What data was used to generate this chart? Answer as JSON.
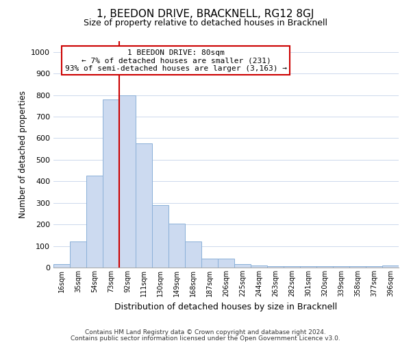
{
  "title": "1, BEEDON DRIVE, BRACKNELL, RG12 8GJ",
  "subtitle": "Size of property relative to detached houses in Bracknell",
  "xlabel": "Distribution of detached houses by size in Bracknell",
  "ylabel": "Number of detached properties",
  "bar_labels": [
    "16sqm",
    "35sqm",
    "54sqm",
    "73sqm",
    "92sqm",
    "111sqm",
    "130sqm",
    "149sqm",
    "168sqm",
    "187sqm",
    "206sqm",
    "225sqm",
    "244sqm",
    "263sqm",
    "282sqm",
    "301sqm",
    "320sqm",
    "339sqm",
    "358sqm",
    "377sqm",
    "396sqm"
  ],
  "bar_values": [
    15,
    120,
    425,
    780,
    800,
    575,
    290,
    205,
    120,
    40,
    40,
    15,
    10,
    5,
    5,
    5,
    5,
    5,
    5,
    5,
    10
  ],
  "bar_color": "#ccdaf0",
  "bar_edge_color": "#8ab0d8",
  "vline_color": "#cc0000",
  "vline_x_index": 4,
  "annotation_title": "1 BEEDON DRIVE: 80sqm",
  "annotation_line1": "← 7% of detached houses are smaller (231)",
  "annotation_line2": "93% of semi-detached houses are larger (3,163) →",
  "annotation_box_facecolor": "#ffffff",
  "annotation_box_edgecolor": "#cc0000",
  "ylim": [
    0,
    1050
  ],
  "yticks": [
    0,
    100,
    200,
    300,
    400,
    500,
    600,
    700,
    800,
    900,
    1000
  ],
  "footer_line1": "Contains HM Land Registry data © Crown copyright and database right 2024.",
  "footer_line2": "Contains public sector information licensed under the Open Government Licence v3.0.",
  "bg_color": "#ffffff",
  "grid_color": "#ccd8ec"
}
